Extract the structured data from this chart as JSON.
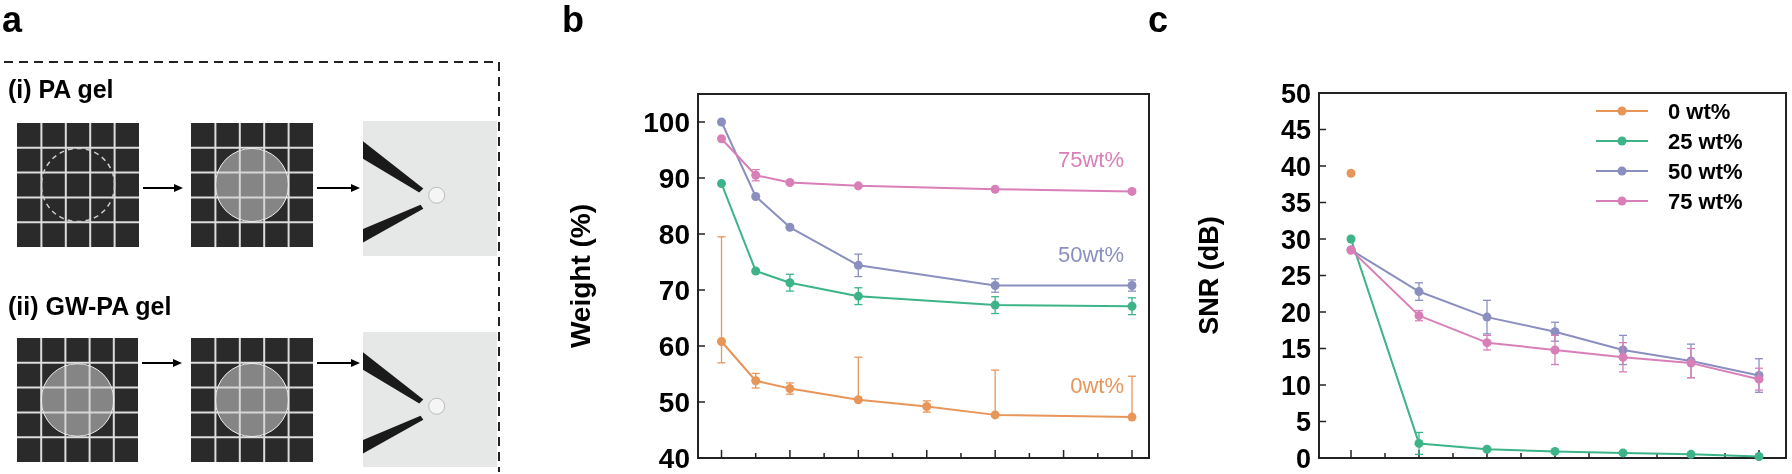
{
  "chart_data": [
    {
      "type": "other",
      "title": "a",
      "annotations": [
        "(i) PA gel",
        "(ii) GW-PA gel"
      ]
    },
    {
      "type": "line",
      "title": "b",
      "ylabel": "Weight (%)",
      "categories": [
        null,
        null,
        null,
        null,
        null,
        null,
        null,
        null,
        null,
        null,
        null,
        null,
        null
      ],
      "ylim": [
        40,
        105
      ],
      "yticks": [
        40,
        50,
        60,
        70,
        80,
        90,
        100
      ],
      "tick_labels": "y",
      "marker": "circle",
      "series": [
        {
          "name": "0wt%",
          "color": "#e8955a",
          "values": [
            60.8,
            53.8,
            52.4,
            null,
            50.4,
            null,
            49.2,
            null,
            47.7,
            null,
            null,
            null,
            47.3
          ],
          "errors": [
            [
              57,
              79.5
            ],
            1.3,
            1,
            null,
            [
              50.4,
              58
            ],
            null,
            1,
            null,
            [
              47.7,
              55.7
            ],
            null,
            null,
            null,
            [
              47.3,
              54.6
            ]
          ]
        },
        {
          "color": "#3cb488",
          "values": [
            89,
            73.4,
            71.3,
            null,
            68.9,
            null,
            null,
            null,
            67.3,
            null,
            null,
            null,
            67.1
          ],
          "errors": [
            null,
            null,
            1.5,
            null,
            1.5,
            null,
            null,
            null,
            1.5,
            null,
            null,
            null,
            1.5
          ]
        },
        {
          "name": "50wt%",
          "color": "#8a8fc0",
          "values": [
            100,
            86.7,
            81.2,
            null,
            74.4,
            null,
            null,
            null,
            70.8,
            null,
            null,
            null,
            70.8
          ],
          "errors": [
            null,
            null,
            null,
            null,
            2,
            null,
            null,
            null,
            1.2,
            null,
            null,
            null,
            1
          ]
        },
        {
          "name": "75wt%",
          "color": "#d97fb8",
          "values": [
            97,
            90.5,
            89.2,
            null,
            88.6,
            null,
            null,
            null,
            88,
            null,
            null,
            null,
            87.6
          ],
          "errors": [
            null,
            1,
            null,
            null,
            null,
            null,
            null,
            null,
            null,
            null,
            null,
            null,
            null
          ]
        }
      ]
    },
    {
      "type": "line",
      "title": "c",
      "ylabel": "SNR (dB)",
      "categories": [
        null,
        null,
        null,
        null,
        null,
        null,
        null
      ],
      "ylim": [
        0,
        50
      ],
      "yticks": [
        0,
        5,
        10,
        15,
        20,
        25,
        30,
        35,
        40,
        45,
        50
      ],
      "tick_labels": "y",
      "marker": "circle",
      "legend": "top right",
      "series": [
        {
          "name": "0 wt%",
          "color": "#e8955a",
          "values": [
            39,
            null,
            null,
            null,
            null,
            null,
            null
          ]
        },
        {
          "name": "25 wt%",
          "color": "#3cb488",
          "values": [
            30,
            2,
            1.2,
            0.9,
            0.7,
            0.5,
            0.2
          ],
          "errors": [
            null,
            1.5,
            null,
            null,
            null,
            null,
            null
          ]
        },
        {
          "name": "50 wt%",
          "color": "#8a8fc0",
          "values": [
            28.5,
            22.8,
            19.3,
            17.3,
            14.8,
            13.3,
            11.3
          ],
          "errors": [
            null,
            1.2,
            2.3,
            1.3,
            2,
            2.3,
            2.3
          ]
        },
        {
          "name": "75 wt%",
          "color": "#d97fb8",
          "values": [
            28.5,
            19.5,
            15.8,
            14.8,
            13.8,
            13,
            10.8
          ],
          "errors": [
            null,
            0.7,
            1,
            2,
            2,
            2,
            1.5
          ]
        }
      ]
    }
  ]
}
